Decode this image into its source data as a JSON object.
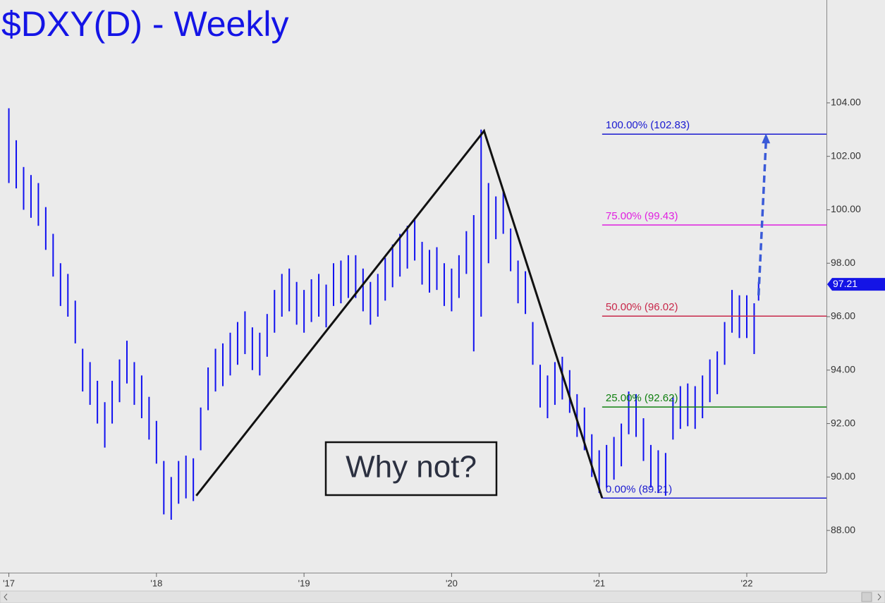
{
  "chart_data": {
    "type": "range",
    "title": "$DXY(D) - Weekly",
    "color": "#1010f0",
    "background": "#ebebeb",
    "xlim": [
      2016.94,
      2022.54
    ],
    "ylim": [
      86.42,
      107.85
    ],
    "xticks": [
      {
        "value": 2017,
        "label": "'17"
      },
      {
        "value": 2018,
        "label": "'18"
      },
      {
        "value": 2019,
        "label": "'19"
      },
      {
        "value": 2020,
        "label": "'20"
      },
      {
        "value": 2021,
        "label": "'21"
      },
      {
        "value": 2022,
        "label": "'22"
      }
    ],
    "yticks": [
      {
        "value": 88,
        "label": "88.00"
      },
      {
        "value": 90,
        "label": "90.00"
      },
      {
        "value": 92,
        "label": "92.00"
      },
      {
        "value": 94,
        "label": "94.00"
      },
      {
        "value": 96,
        "label": "96.00"
      },
      {
        "value": 98,
        "label": "98.00"
      },
      {
        "value": 100,
        "label": "100.00"
      },
      {
        "value": 102,
        "label": "102.00"
      },
      {
        "value": 104,
        "label": "104.00"
      }
    ],
    "x": [
      2017.0,
      2017.05,
      2017.1,
      2017.15,
      2017.2,
      2017.25,
      2017.3,
      2017.35,
      2017.4,
      2017.45,
      2017.5,
      2017.55,
      2017.6,
      2017.65,
      2017.7,
      2017.75,
      2017.8,
      2017.85,
      2017.9,
      2017.95,
      2018.0,
      2018.05,
      2018.1,
      2018.15,
      2018.2,
      2018.25,
      2018.3,
      2018.35,
      2018.4,
      2018.45,
      2018.5,
      2018.55,
      2018.6,
      2018.65,
      2018.7,
      2018.75,
      2018.8,
      2018.85,
      2018.9,
      2018.95,
      2019.0,
      2019.05,
      2019.1,
      2019.15,
      2019.2,
      2019.25,
      2019.3,
      2019.35,
      2019.4,
      2019.45,
      2019.5,
      2019.55,
      2019.6,
      2019.65,
      2019.7,
      2019.75,
      2019.8,
      2019.85,
      2019.9,
      2019.95,
      2020.0,
      2020.05,
      2020.1,
      2020.15,
      2020.2,
      2020.25,
      2020.3,
      2020.35,
      2020.4,
      2020.45,
      2020.5,
      2020.55,
      2020.6,
      2020.65,
      2020.7,
      2020.75,
      2020.8,
      2020.85,
      2020.9,
      2020.95,
      2021.0,
      2021.05,
      2021.1,
      2021.15,
      2021.2,
      2021.25,
      2021.3,
      2021.35,
      2021.4,
      2021.45,
      2021.5,
      2021.55,
      2021.6,
      2021.65,
      2021.7,
      2021.75,
      2021.8,
      2021.85,
      2021.9,
      2021.95,
      2022.0,
      2022.05,
      2022.08
    ],
    "high": [
      103.8,
      102.6,
      101.6,
      101.3,
      101.0,
      100.1,
      99.1,
      98.0,
      97.6,
      96.6,
      94.8,
      94.3,
      93.6,
      92.8,
      93.6,
      94.4,
      95.1,
      94.3,
      93.8,
      93.0,
      92.1,
      90.6,
      90.0,
      90.6,
      90.8,
      90.7,
      92.6,
      94.1,
      94.8,
      95.0,
      95.4,
      95.8,
      96.2,
      95.6,
      95.4,
      96.1,
      97.0,
      97.6,
      97.8,
      97.3,
      97.0,
      97.4,
      97.6,
      97.2,
      98.0,
      98.1,
      98.3,
      98.3,
      97.8,
      97.3,
      97.6,
      98.2,
      98.7,
      99.1,
      99.4,
      99.7,
      98.8,
      98.5,
      98.6,
      98.0,
      97.8,
      98.3,
      99.2,
      99.8,
      103.0,
      101.0,
      100.5,
      100.7,
      99.3,
      98.1,
      97.7,
      95.8,
      94.2,
      93.8,
      94.3,
      94.5,
      94.0,
      93.1,
      92.6,
      91.6,
      91.0,
      91.2,
      91.5,
      92.0,
      93.2,
      93.1,
      92.2,
      91.2,
      91.0,
      90.9,
      93.0,
      93.4,
      93.5,
      93.4,
      93.8,
      94.4,
      94.7,
      95.8,
      97.0,
      96.8,
      96.8,
      96.5,
      97.3
    ],
    "low": [
      101.0,
      100.8,
      100.0,
      99.7,
      99.4,
      98.5,
      97.5,
      96.4,
      96.0,
      95.0,
      93.2,
      92.7,
      92.0,
      91.1,
      92.0,
      92.8,
      93.5,
      92.7,
      92.2,
      91.4,
      90.5,
      88.6,
      88.4,
      89.0,
      89.2,
      89.1,
      91.0,
      92.5,
      93.2,
      93.4,
      93.8,
      94.2,
      94.6,
      94.0,
      93.8,
      94.5,
      95.4,
      96.0,
      96.2,
      95.7,
      95.4,
      95.8,
      96.0,
      95.6,
      96.4,
      96.5,
      96.7,
      96.7,
      96.2,
      95.7,
      96.0,
      96.6,
      97.1,
      97.5,
      97.8,
      98.1,
      97.2,
      96.9,
      97.0,
      96.4,
      96.2,
      96.7,
      97.6,
      94.7,
      96.0,
      98.0,
      98.9,
      99.1,
      97.7,
      96.5,
      96.1,
      94.2,
      92.6,
      92.2,
      92.7,
      92.9,
      92.4,
      91.5,
      91.0,
      90.0,
      89.4,
      89.6,
      89.9,
      90.4,
      91.6,
      91.5,
      90.6,
      89.6,
      89.4,
      89.3,
      91.4,
      91.8,
      91.9,
      91.8,
      92.2,
      92.8,
      93.1,
      94.2,
      95.4,
      95.2,
      95.2,
      94.6,
      96.6
    ],
    "levels": [
      {
        "label": "100.00% (102.83)",
        "value": 102.83,
        "color": "#1a1ad0"
      },
      {
        "label": "75.00% (99.43)",
        "value": 99.43,
        "color": "#e020e0"
      },
      {
        "label": "50.00% (96.02)",
        "value": 96.02,
        "color": "#c8284a"
      },
      {
        "label": "25.00% (92.62)",
        "value": 92.62,
        "color": "#108010"
      },
      {
        "label": "0.00% (89.21)",
        "value": 89.21,
        "color": "#1a1ad0"
      }
    ],
    "levels_start": 2021.02,
    "trendline": {
      "x": [
        2018.27,
        2020.22,
        2021.02
      ],
      "y": [
        89.3,
        102.95,
        89.21
      ]
    },
    "arrow": {
      "x": [
        2022.08,
        2022.13
      ],
      "y": [
        96.8,
        102.75
      ]
    },
    "annotation": "Why not?",
    "last_price": {
      "value": 97.21,
      "label": "97.21"
    }
  }
}
